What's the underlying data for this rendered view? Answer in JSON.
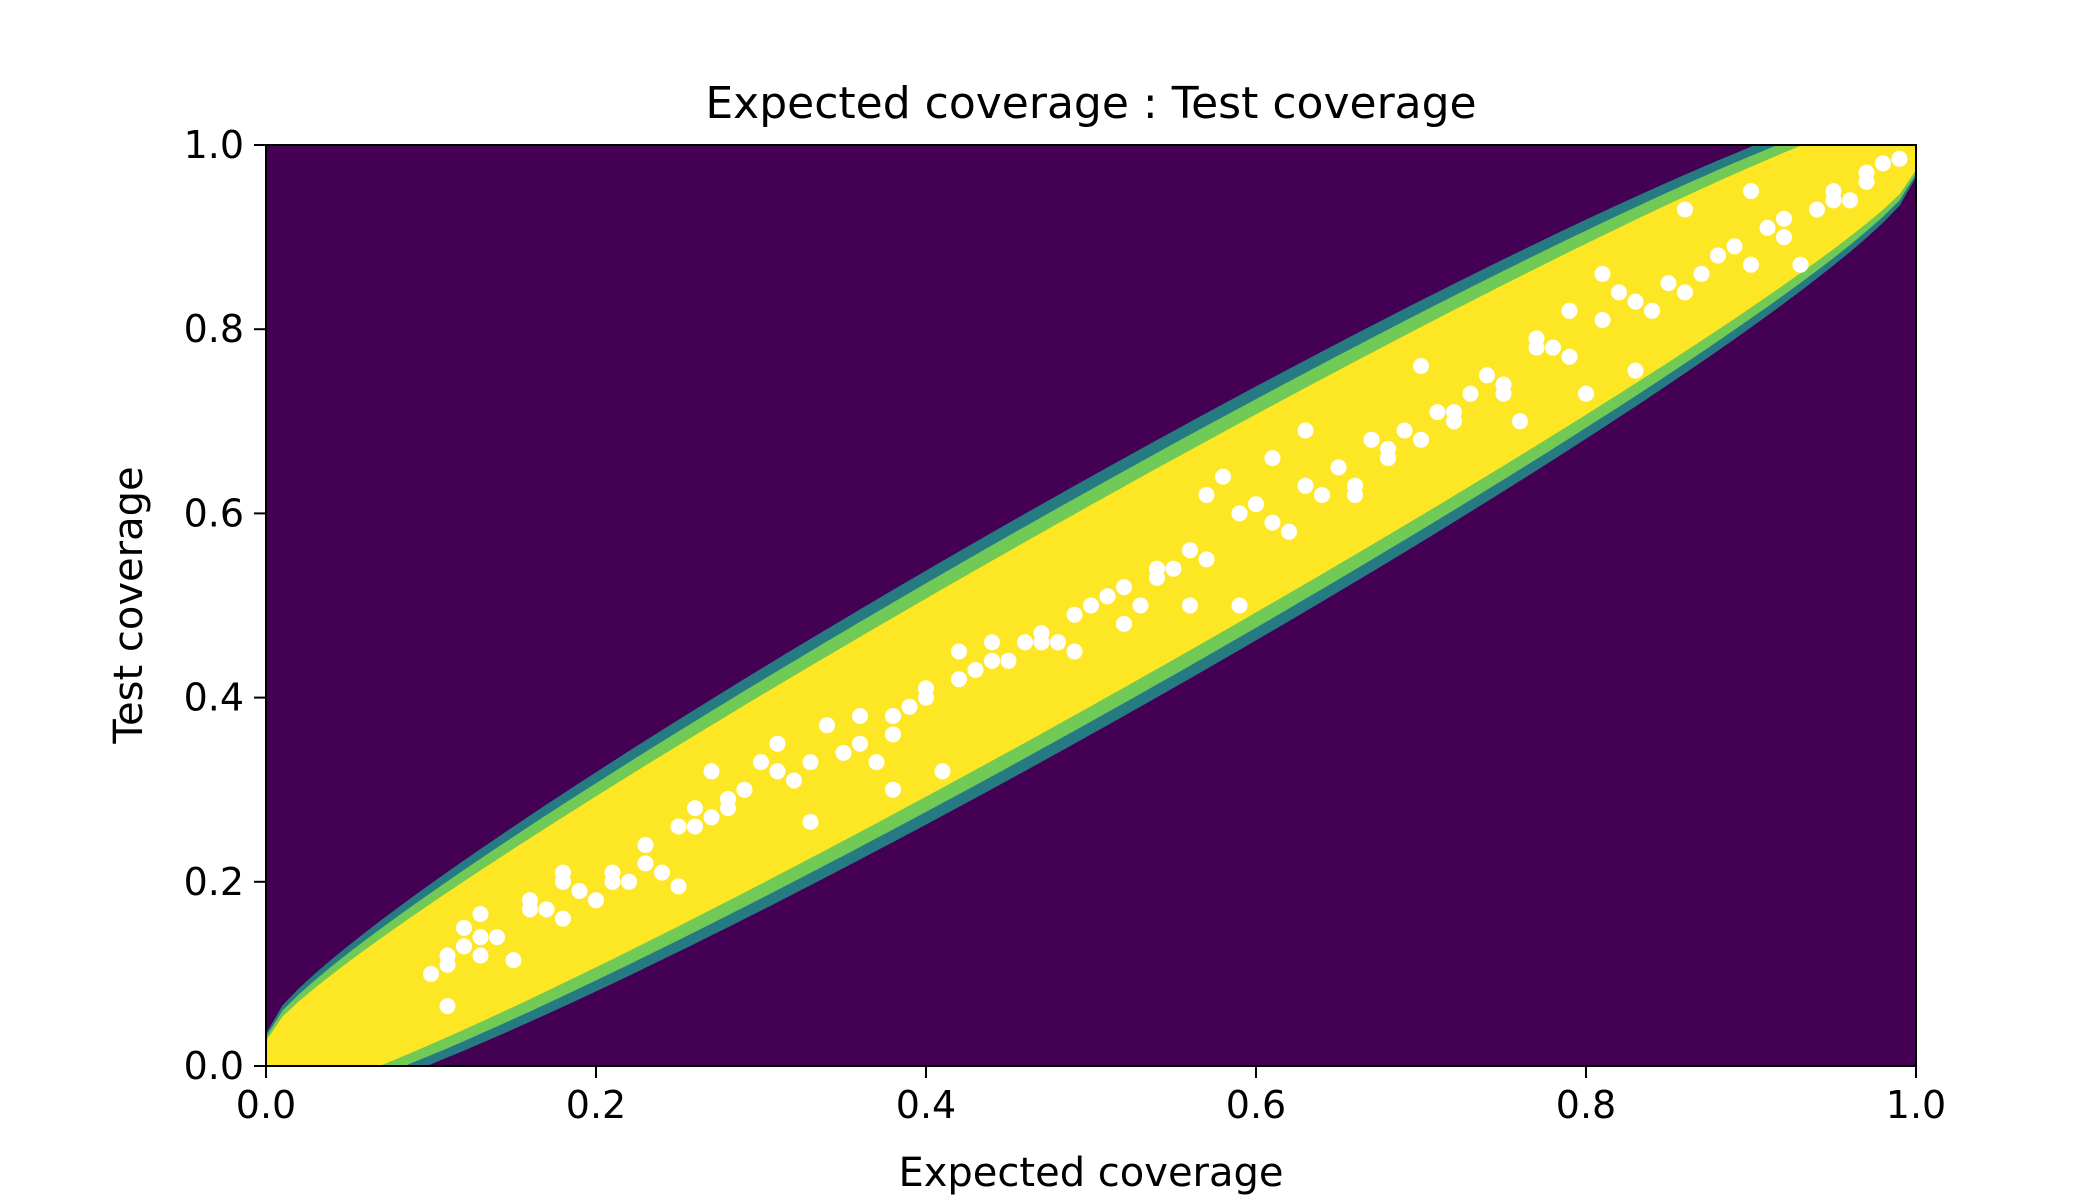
{
  "chart_data": {
    "type": "scatter",
    "title": "Expected coverage : Test coverage",
    "xlabel": "Expected coverage",
    "ylabel": "Test coverage",
    "xlim": [
      0.0,
      1.0
    ],
    "ylim": [
      0.0,
      1.0
    ],
    "xticks": [
      "0.0",
      "0.2",
      "0.4",
      "0.6",
      "0.8",
      "1.0"
    ],
    "yticks": [
      "0.0",
      "0.2",
      "0.4",
      "0.6",
      "0.8",
      "1.0"
    ],
    "grid": false,
    "legend": "none",
    "background": {
      "type": "heatmap",
      "description_colors": {
        "low": "#440154",
        "mid": "#21918c",
        "high": "#fde725"
      }
    },
    "colors": {
      "points": "#ffffff",
      "band_low": "#440154",
      "band_mid": "#21918c",
      "band_edge": "#7ad151",
      "band_high": "#fde725"
    },
    "series": [
      {
        "x": [
          0.1,
          0.11,
          0.11,
          0.12,
          0.12,
          0.13,
          0.13,
          0.14,
          0.15,
          0.16,
          0.17,
          0.18,
          0.18,
          0.19,
          0.2,
          0.21,
          0.22,
          0.23,
          0.24,
          0.25,
          0.26,
          0.26,
          0.27,
          0.27,
          0.28,
          0.29,
          0.3,
          0.31,
          0.32,
          0.33,
          0.34,
          0.35,
          0.36,
          0.37,
          0.38,
          0.38,
          0.39,
          0.4,
          0.41,
          0.42,
          0.43,
          0.44,
          0.45,
          0.46,
          0.47,
          0.48,
          0.49,
          0.5,
          0.51,
          0.52,
          0.53,
          0.54,
          0.55,
          0.56,
          0.56,
          0.57,
          0.58,
          0.59,
          0.6,
          0.61,
          0.62,
          0.63,
          0.64,
          0.65,
          0.66,
          0.67,
          0.68,
          0.69,
          0.7,
          0.71,
          0.72,
          0.73,
          0.74,
          0.75,
          0.76,
          0.77,
          0.78,
          0.79,
          0.8,
          0.81,
          0.82,
          0.83,
          0.84,
          0.85,
          0.86,
          0.87,
          0.88,
          0.89,
          0.9,
          0.91,
          0.92,
          0.93,
          0.94,
          0.95,
          0.96,
          0.97,
          0.98,
          0.99,
          0.11,
          0.13,
          0.16,
          0.18,
          0.21,
          0.23,
          0.25,
          0.28,
          0.31,
          0.33,
          0.36,
          0.38,
          0.4,
          0.42,
          0.44,
          0.47,
          0.49,
          0.52,
          0.54,
          0.57,
          0.59,
          0.61,
          0.63,
          0.66,
          0.68,
          0.7,
          0.72,
          0.75,
          0.77,
          0.79,
          0.81,
          0.83,
          0.86,
          0.88,
          0.9,
          0.92,
          0.95,
          0.97
        ],
        "y": [
          0.1,
          0.065,
          0.11,
          0.13,
          0.15,
          0.165,
          0.12,
          0.14,
          0.115,
          0.18,
          0.17,
          0.16,
          0.21,
          0.19,
          0.18,
          0.21,
          0.2,
          0.22,
          0.21,
          0.195,
          0.26,
          0.28,
          0.32,
          0.27,
          0.29,
          0.3,
          0.33,
          0.35,
          0.31,
          0.265,
          0.37,
          0.34,
          0.38,
          0.33,
          0.3,
          0.36,
          0.39,
          0.4,
          0.32,
          0.45,
          0.43,
          0.44,
          0.44,
          0.46,
          0.47,
          0.46,
          0.45,
          0.5,
          0.51,
          0.52,
          0.5,
          0.53,
          0.54,
          0.56,
          0.5,
          0.62,
          0.64,
          0.5,
          0.61,
          0.66,
          0.58,
          0.69,
          0.62,
          0.65,
          0.63,
          0.68,
          0.66,
          0.69,
          0.76,
          0.71,
          0.7,
          0.73,
          0.75,
          0.74,
          0.7,
          0.79,
          0.78,
          0.82,
          0.73,
          0.86,
          0.84,
          0.755,
          0.82,
          0.85,
          0.93,
          0.86,
          0.88,
          0.89,
          0.95,
          0.91,
          0.9,
          0.87,
          0.93,
          0.95,
          0.94,
          0.97,
          0.98,
          0.985,
          0.12,
          0.14,
          0.17,
          0.2,
          0.2,
          0.24,
          0.26,
          0.28,
          0.32,
          0.33,
          0.35,
          0.38,
          0.41,
          0.42,
          0.46,
          0.46,
          0.49,
          0.48,
          0.54,
          0.55,
          0.6,
          0.59,
          0.63,
          0.62,
          0.67,
          0.68,
          0.71,
          0.73,
          0.78,
          0.77,
          0.81,
          0.83,
          0.84,
          0.88,
          0.87,
          0.92,
          0.94,
          0.96
        ]
      }
    ]
  }
}
